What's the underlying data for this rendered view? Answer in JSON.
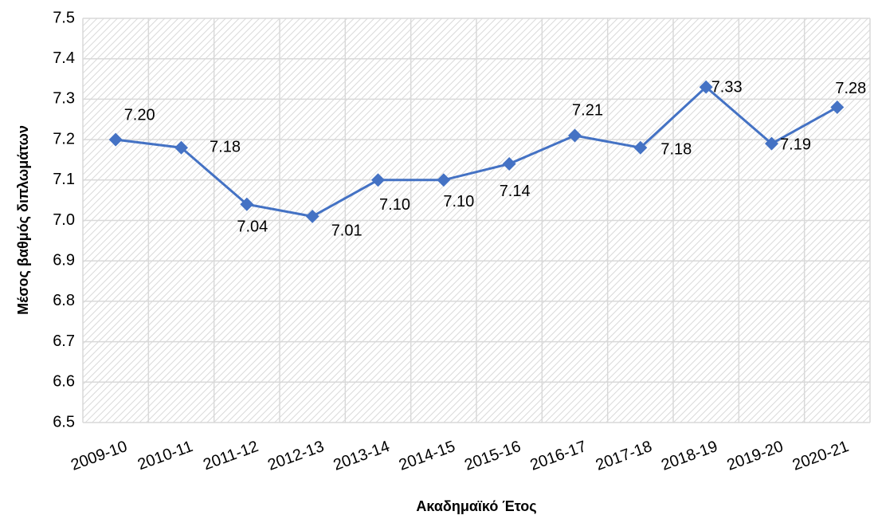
{
  "chart_data": {
    "type": "line",
    "x_label": "Ακαδημαϊκό Έτος",
    "y_label": "Μέσος βαθμός διπλωμάτων",
    "categories": [
      "2009-10",
      "2010-11",
      "2011-12",
      "2012-13",
      "2013-14",
      "2014-15",
      "2015-16",
      "2016-17",
      "2017-18",
      "2018-19",
      "2019-20",
      "2020-21"
    ],
    "series": [
      {
        "name": "Μέσος βαθμός διπλωμάτων",
        "color": "#4472c4",
        "values": [
          7.2,
          7.18,
          7.04,
          7.01,
          7.1,
          7.1,
          7.14,
          7.21,
          7.18,
          7.33,
          7.19,
          7.28
        ],
        "value_labels": [
          "7.20",
          "7.18",
          "7.04",
          "7.01",
          "7.10",
          "7.10",
          "7.14",
          "7.21",
          "7.18",
          "7.33",
          "7.19",
          "7.28"
        ]
      }
    ],
    "ylim": [
      6.5,
      7.5
    ],
    "yticks": [
      6.5,
      6.6,
      6.7,
      6.8,
      6.9,
      {
        "value": 7,
        "label": "7.0"
      },
      7.1,
      7.2,
      7.3,
      7.4,
      7.5
    ],
    "grid": true
  }
}
